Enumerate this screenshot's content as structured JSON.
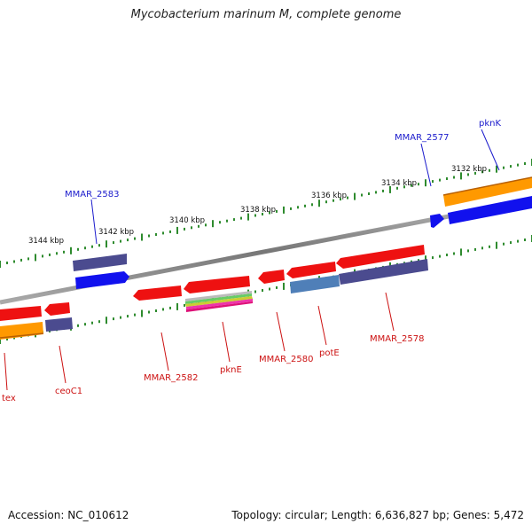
{
  "title": "Mycobacterium marinum M, complete genome",
  "footer": {
    "accession": "Accession: NC_010612",
    "topology": "Topology: circular; Length: 6,636,827 bp; Genes: 5,472"
  },
  "ruler": {
    "ticks": [
      "3132 kbp",
      "3134 kbp",
      "3136 kbp",
      "3138 kbp",
      "3140 kbp",
      "3142 kbp",
      "3144 kbp"
    ]
  },
  "gene_labels": {
    "top": [
      "MMAR_2583",
      "MMAR_2577",
      "pknK"
    ],
    "bottom": [
      "tex",
      "ceoC1",
      "MMAR_2582",
      "pknE",
      "MMAR_2580",
      "potE",
      "MMAR_2578"
    ]
  },
  "colors": {
    "label_top": "#1a1acc",
    "label_bottom": "#cc1111",
    "tick": "#2e8b2e",
    "backbone": "#808080",
    "gene_red": "#ee1111",
    "gene_blue": "#1111ee",
    "gene_orange": "#ff9900",
    "gene_purple": "#4b4b8f",
    "gene_steel": "#4f7fb8"
  }
}
